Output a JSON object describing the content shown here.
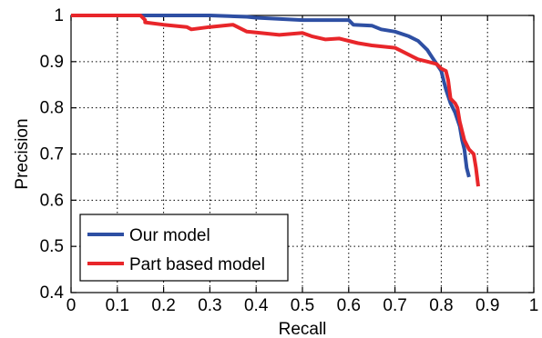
{
  "chart_data": {
    "type": "line",
    "title": "",
    "xlabel": "Recall",
    "ylabel": "Precision",
    "xlim": [
      0,
      1
    ],
    "ylim": [
      0.4,
      1
    ],
    "grid": true,
    "legend_position": "bottom-left",
    "x_ticks": [
      "0",
      "0.1",
      "0.2",
      "0.3",
      "0.4",
      "0.5",
      "0.6",
      "0.7",
      "0.8",
      "0.9",
      "1"
    ],
    "y_ticks": [
      "0.4",
      "0.5",
      "0.6",
      "0.7",
      "0.8",
      "0.9",
      "1"
    ],
    "series": [
      {
        "name": "Our model",
        "color": "#2e4fa3",
        "x": [
          0,
          0.1,
          0.2,
          0.3,
          0.38,
          0.4,
          0.5,
          0.6,
          0.61,
          0.65,
          0.67,
          0.7,
          0.73,
          0.75,
          0.77,
          0.78,
          0.8,
          0.805,
          0.81,
          0.82,
          0.83,
          0.84,
          0.845,
          0.85,
          0.855,
          0.86
        ],
        "y": [
          1,
          1,
          1,
          1,
          0.997,
          0.995,
          0.99,
          0.99,
          0.98,
          0.978,
          0.97,
          0.965,
          0.955,
          0.945,
          0.925,
          0.91,
          0.88,
          0.86,
          0.84,
          0.81,
          0.79,
          0.76,
          0.73,
          0.71,
          0.67,
          0.65
        ]
      },
      {
        "name": "Part based model",
        "color": "#e8262a",
        "x": [
          0,
          0.05,
          0.1,
          0.15,
          0.16,
          0.16,
          0.2,
          0.25,
          0.26,
          0.3,
          0.35,
          0.37,
          0.38,
          0.4,
          0.45,
          0.5,
          0.52,
          0.55,
          0.58,
          0.6,
          0.62,
          0.65,
          0.7,
          0.72,
          0.74,
          0.75,
          0.77,
          0.79,
          0.8,
          0.81,
          0.815,
          0.82,
          0.83,
          0.835,
          0.84,
          0.85,
          0.86,
          0.87,
          0.875,
          0.88
        ],
        "y": [
          1,
          1,
          1,
          1,
          0.99,
          0.985,
          0.98,
          0.975,
          0.97,
          0.975,
          0.98,
          0.97,
          0.965,
          0.963,
          0.958,
          0.962,
          0.955,
          0.948,
          0.95,
          0.945,
          0.94,
          0.935,
          0.93,
          0.92,
          0.91,
          0.905,
          0.9,
          0.895,
          0.885,
          0.88,
          0.86,
          0.82,
          0.81,
          0.8,
          0.77,
          0.73,
          0.71,
          0.7,
          0.67,
          0.63
        ]
      }
    ]
  }
}
